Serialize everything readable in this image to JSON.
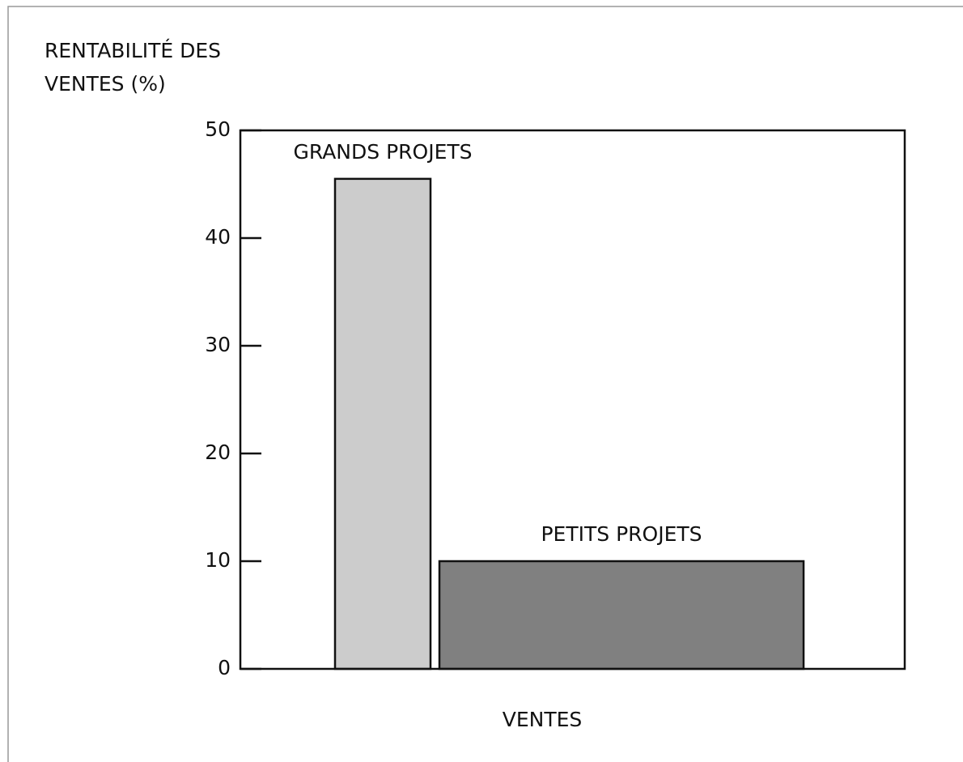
{
  "chart_data": {
    "type": "bar",
    "y_label": "RENTABILITÉ DES VENTES (%)",
    "x_label": "VENTES",
    "categories": [
      "GRANDS PROJETS",
      "PETITS PROJETS"
    ],
    "values": [
      45.5,
      10
    ],
    "colors": [
      "#cccccc",
      "#808080"
    ],
    "ylim": [
      0,
      50
    ],
    "yticks": [
      0,
      10,
      20,
      30,
      40,
      50
    ],
    "grid": false
  }
}
